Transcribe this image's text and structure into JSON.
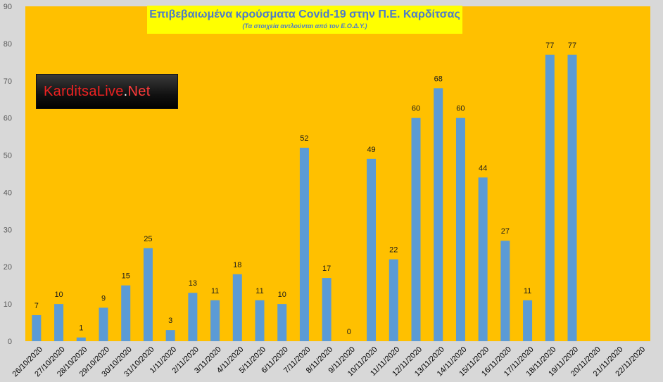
{
  "chart_data": {
    "type": "bar",
    "title": "Επιβεβαιωμένα κρούσματα Covid-19 στην Π.Ε. Καρδίτσας",
    "subtitle": "(Τα στοιχεία αντλούνται από τον Ε.Ο.Δ.Υ.)",
    "xlabel": "",
    "ylabel": "",
    "ylim": [
      0,
      90
    ],
    "yticks": [
      0,
      10,
      20,
      30,
      40,
      50,
      60,
      70,
      80,
      90
    ],
    "grid": false,
    "categories": [
      "26/10/2020",
      "27/10/2020",
      "28/10/2020",
      "29/10/2020",
      "30/10/2020",
      "31/10/2020",
      "1/11/2020",
      "2/11/2020",
      "3/11/2020",
      "4/11/2020",
      "5/11/2020",
      "6/11/2020",
      "7/11/2020",
      "8/11/2020",
      "9/11/2020",
      "10/11/2020",
      "11/11/2020",
      "12/11/2020",
      "13/11/2020",
      "14/11/2020",
      "15/11/2020",
      "16/11/2020",
      "17/11/2020",
      "18/11/2020",
      "19/11/2020",
      "20/11/2020",
      "21/11/2020",
      "22/11/2020"
    ],
    "values": [
      7,
      10,
      1,
      9,
      15,
      25,
      3,
      13,
      11,
      18,
      11,
      10,
      52,
      17,
      0,
      49,
      22,
      60,
      68,
      60,
      44,
      27,
      11,
      77,
      77,
      null,
      null,
      null
    ],
    "data_labels": [
      "7",
      "10",
      "1",
      "9",
      "15",
      "25",
      "3",
      "13",
      "11",
      "18",
      "11",
      "10",
      "52",
      "17",
      "0",
      "49",
      "22",
      "60",
      "68",
      "60",
      "44",
      "27",
      "11",
      "77",
      "77",
      "",
      "",
      ""
    ],
    "colors": {
      "bar": "#5b9bd5",
      "plot_background": "#ffc000",
      "label": "#1a1a1a",
      "axis_text": "#595959"
    }
  },
  "logo": {
    "part1": "KarditsaLive",
    "dot": ".",
    "part2": "Net"
  }
}
